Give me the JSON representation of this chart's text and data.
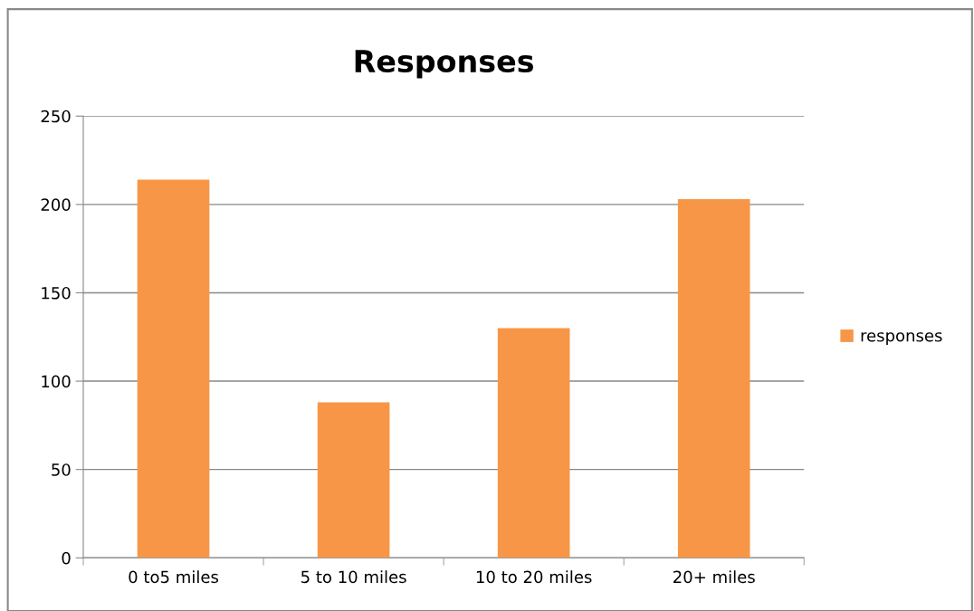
{
  "chart_data": {
    "type": "bar",
    "title": "Responses",
    "categories": [
      "0 to5 miles",
      "5 to 10 miles",
      "10 to 20 miles",
      "20+ miles"
    ],
    "series": [
      {
        "name": "responses",
        "color": "#f79646",
        "values": [
          214,
          88,
          130,
          203
        ]
      }
    ],
    "ylim": [
      0,
      250
    ],
    "yticks": [
      0,
      50,
      100,
      150,
      200,
      250
    ],
    "grid": "y",
    "legend": "right"
  }
}
